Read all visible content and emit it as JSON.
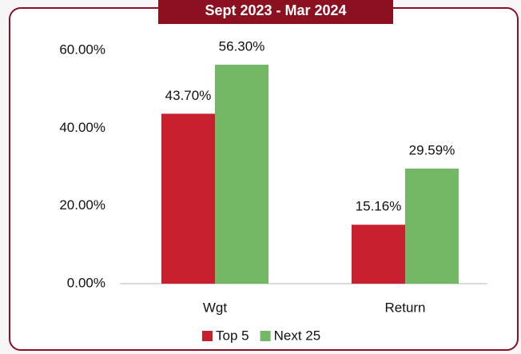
{
  "chart_data": {
    "type": "bar",
    "title": "Sept 2023 - Mar 2024",
    "categories": [
      "Wgt",
      "Return"
    ],
    "series": [
      {
        "name": "Top 5",
        "color": "#c8202f",
        "values": [
          43.7,
          15.16
        ],
        "value_labels": [
          "43.70%",
          "15.16%"
        ]
      },
      {
        "name": "Next 25",
        "color": "#72b865",
        "values": [
          56.3,
          29.59
        ],
        "value_labels": [
          "56.30%",
          "29.59%"
        ]
      }
    ],
    "ylim": [
      0,
      60
    ],
    "yticks": [
      {
        "value": 0,
        "label": "0.00%"
      },
      {
        "value": 20,
        "label": "20.00%"
      },
      {
        "value": 40,
        "label": "40.00%"
      },
      {
        "value": 60,
        "label": "60.00%"
      }
    ],
    "grid": false,
    "legend": "bottom"
  }
}
